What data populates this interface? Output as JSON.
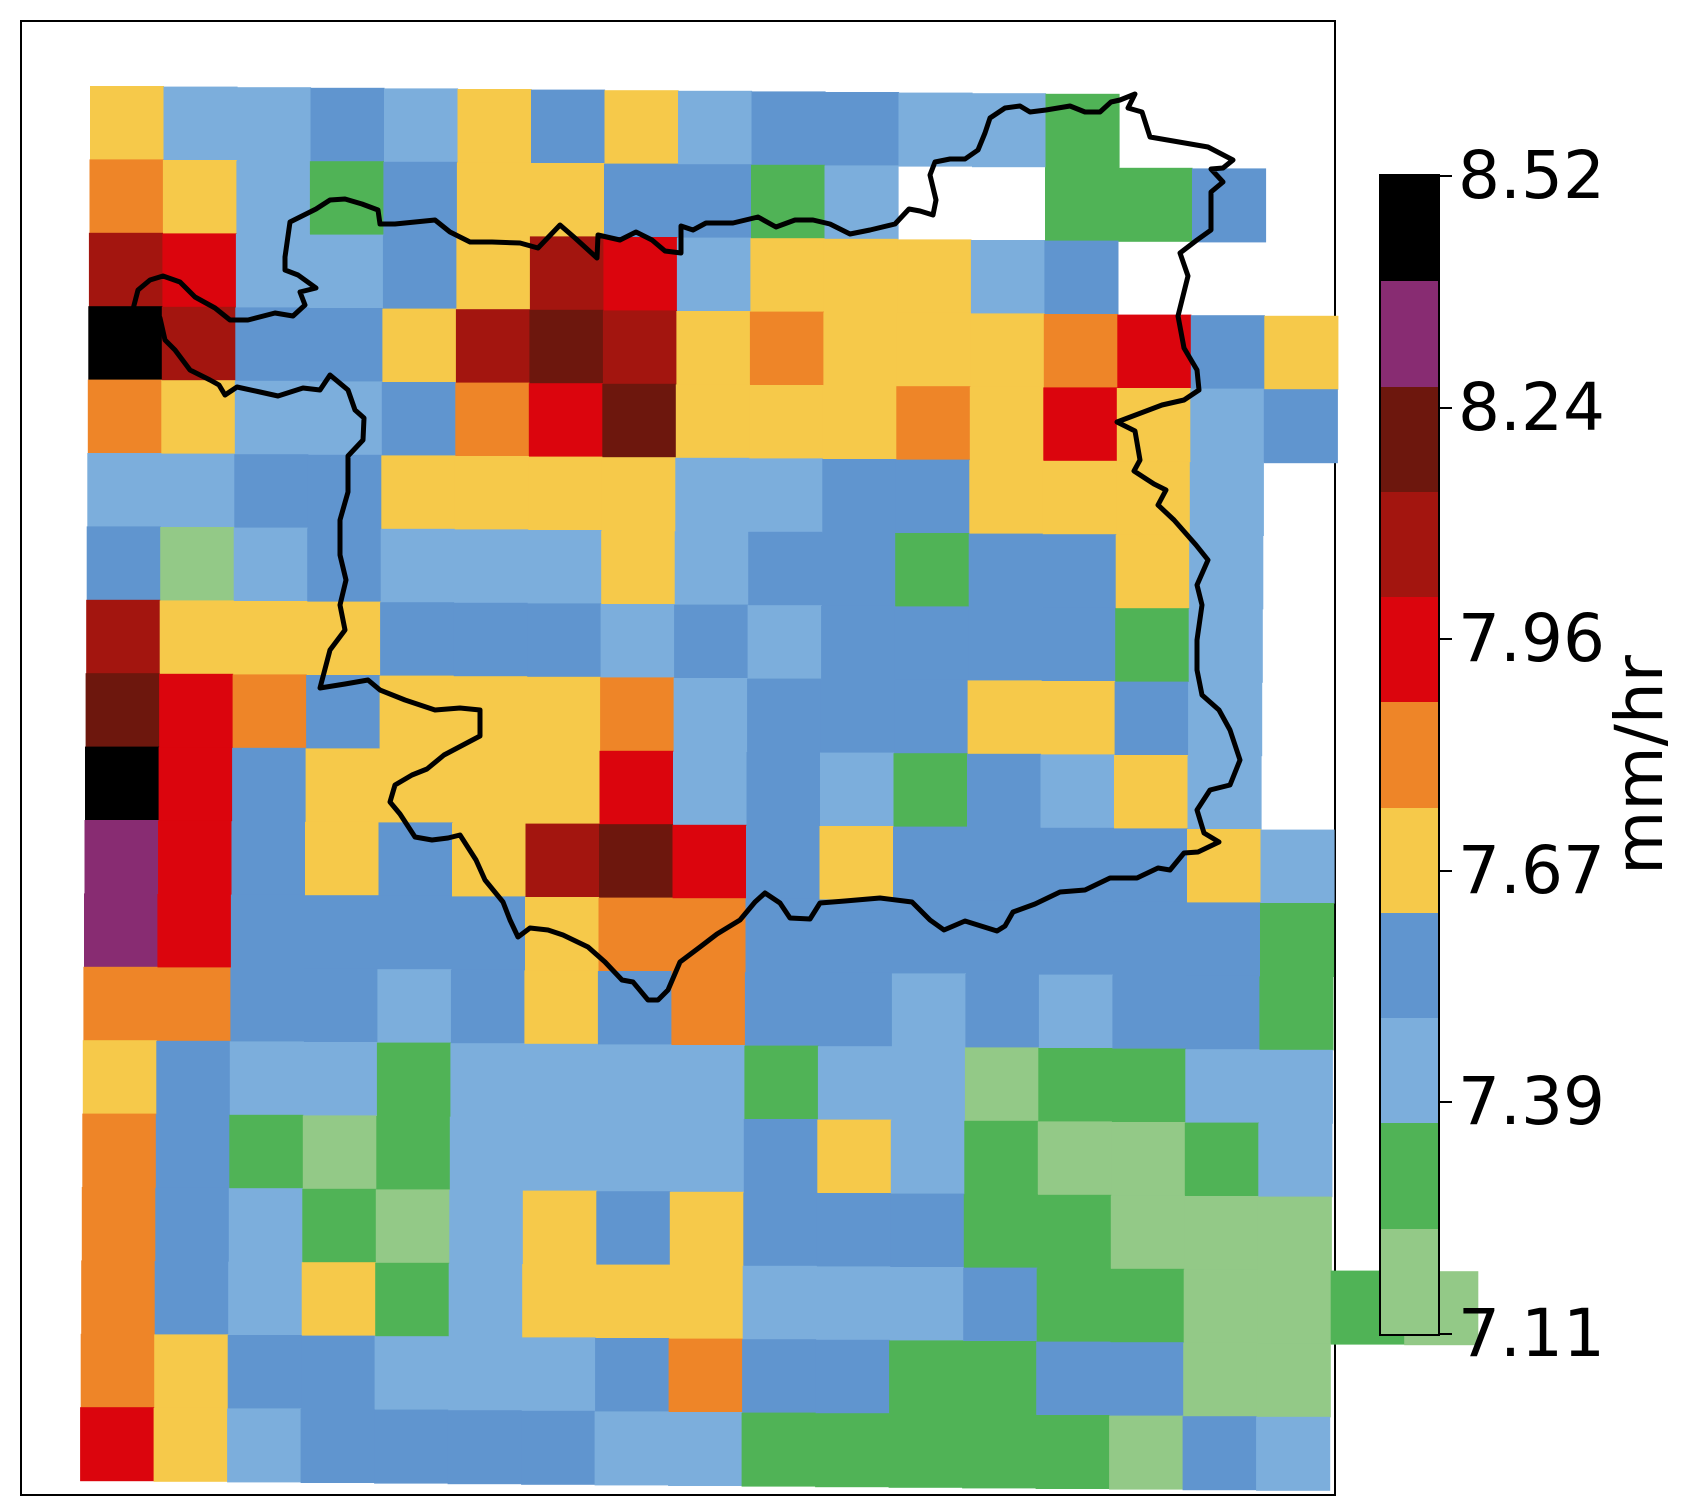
{
  "map": {
    "colors": [
      "#93c987",
      "#50b356",
      "#7caedc",
      "#6095cf",
      "#f6c94a",
      "#ee8528",
      "#db050d",
      "#a3150f",
      "#6d170d",
      "#882c72",
      "#000000"
    ],
    "grid": [
      "42232434233221__",
      "54213443312__113",
      "76223476244423__",
      "A7334787454445634",
      "54223568444546423",
      "2233444422334442",
      "3023222423313342",
      "7444333232333312",
      "8653444523334432",
      "A634444623213242",
      "96343478634333342",
      "96333345533333331",
      "55332343533232331",
      "43221222212201122",
      "53101222234210012",
      "53210243433311000",
      "5324124442223110010",
      "54332223533113300",
      "64233332211111032"
    ],
    "boundary_color": "#000000"
  },
  "colorbar": {
    "tick_labels": [
      "8.52",
      "8.24",
      "7.96",
      "7.67",
      "7.39",
      "7.11"
    ],
    "unit": "mm/hr"
  }
}
